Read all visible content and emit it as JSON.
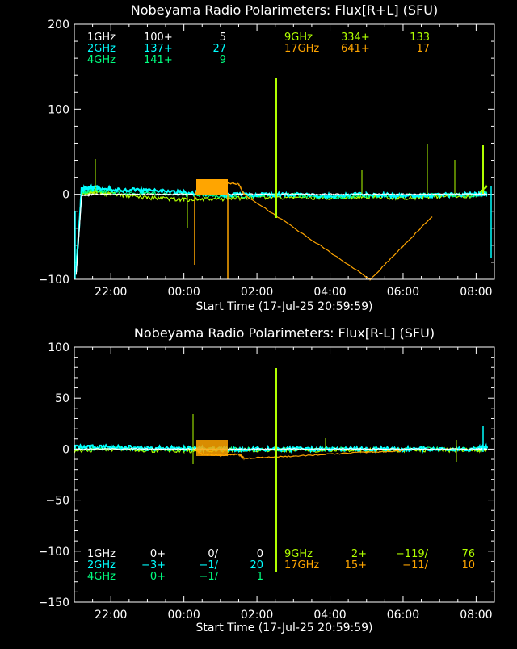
{
  "colors": {
    "1GHz": "#ffffff",
    "2GHz": "#00ffff",
    "4GHz": "#00ff80",
    "9GHz": "#b0ff00",
    "17GHz": "#ffa500"
  },
  "chart_data": [
    {
      "type": "line",
      "title": "Nobeyama Radio Polarimeters: Flux[R+L] (SFU)",
      "xlabel": "Start Time (17-Jul-25 20:59:59)",
      "ylabel": "",
      "x_ticks": [
        "22:00",
        "00:00",
        "02:00",
        "04:00",
        "06:00",
        "08:00"
      ],
      "x_tick_hours": [
        1.0,
        3.0,
        5.0,
        7.0,
        9.0,
        11.0
      ],
      "xlim_hours_from_start": [
        0,
        11.5
      ],
      "ylim": [
        -100,
        200
      ],
      "y_ticks": [
        -100,
        0,
        100,
        200
      ],
      "legend": [
        {
          "name": "1GHz",
          "a": "100+",
          "b": "5"
        },
        {
          "name": "2GHz",
          "a": "137+",
          "b": "27"
        },
        {
          "name": "4GHz",
          "a": "141+",
          "b": "9"
        },
        {
          "name": "9GHz",
          "a": "334+",
          "b": "133"
        },
        {
          "name": "17GHz",
          "a": "641+",
          "b": "17"
        }
      ],
      "series": [
        {
          "name": "9GHz",
          "x": [
            0.05,
            0.2,
            0.5,
            1.0,
            2.0,
            3.0,
            4.0,
            5.0,
            6.0,
            7.0,
            8.0,
            9.0,
            10.0,
            11.0,
            11.3
          ],
          "y": [
            -80,
            0,
            3,
            0,
            -4,
            -6,
            -6,
            -3,
            -4,
            -4,
            -3,
            -4,
            -3,
            -2,
            8
          ]
        },
        {
          "name": "4GHz",
          "x": [
            0.05,
            0.2,
            0.5,
            1.0,
            2.0,
            3.0,
            4.0,
            5.0,
            6.0,
            7.0,
            8.0,
            9.0,
            10.0,
            11.0,
            11.3
          ],
          "y": [
            -80,
            2,
            5,
            3,
            1,
            0,
            -2,
            -2,
            -1,
            -3,
            -2,
            -1,
            -1,
            -1,
            2
          ]
        },
        {
          "name": "2GHz",
          "x": [
            0.05,
            0.2,
            0.5,
            1.0,
            2.0,
            3.0,
            4.0,
            5.0,
            6.0,
            7.0,
            8.0,
            9.0,
            10.0,
            11.0,
            11.3
          ],
          "y": [
            -90,
            6,
            8,
            6,
            4,
            2,
            0,
            -1,
            0,
            -2,
            0,
            -2,
            -1,
            0,
            -1
          ]
        },
        {
          "name": "1GHz",
          "x": [
            0.05,
            0.2,
            0.5,
            1.0,
            2.0,
            3.0,
            4.0,
            5.0,
            6.0,
            7.0,
            8.0,
            9.0,
            10.0,
            11.0,
            11.3
          ],
          "y": [
            -95,
            -2,
            0,
            0,
            0,
            0,
            0,
            0,
            0,
            0,
            0,
            0,
            0,
            0,
            0
          ]
        },
        {
          "name": "17GHz",
          "x": [
            3.3,
            3.5,
            4.0,
            4.5,
            4.65,
            8.1,
            9.8
          ],
          "y": [
            0,
            12,
            14,
            12,
            0,
            -100,
            -26
          ]
        }
      ]
    },
    {
      "type": "line",
      "title": "Nobeyama Radio Polarimeters: Flux[R-L] (SFU)",
      "xlabel": "Start Time (17-Jul-25 20:59:59)",
      "ylabel": "",
      "x_ticks": [
        "22:00",
        "00:00",
        "02:00",
        "04:00",
        "06:00",
        "08:00"
      ],
      "x_tick_hours": [
        1.0,
        3.0,
        5.0,
        7.0,
        9.0,
        11.0
      ],
      "xlim_hours_from_start": [
        0,
        11.5
      ],
      "ylim": [
        -150,
        100
      ],
      "y_ticks": [
        -150,
        -100,
        -50,
        0,
        50,
        100
      ],
      "legend": [
        {
          "name": "1GHz",
          "a": "0+",
          "b": "0/",
          "c": "0"
        },
        {
          "name": "2GHz",
          "a": "-3+",
          "b": "-1/",
          "c": "20"
        },
        {
          "name": "4GHz",
          "a": "0+",
          "b": "-1/",
          "c": "1"
        },
        {
          "name": "9GHz",
          "a": "2+",
          "b": "-119/",
          "c": "76"
        },
        {
          "name": "17GHz",
          "a": "15+",
          "b": "-11/",
          "c": "10"
        }
      ],
      "series": [
        {
          "name": "9GHz",
          "x": [
            0.0,
            1.0,
            2.0,
            3.0,
            4.0,
            5.0,
            6.0,
            7.0,
            8.0,
            9.0,
            10.0,
            11.0,
            11.3
          ],
          "y": [
            -2,
            0,
            -1,
            -2,
            -1,
            -1,
            -1,
            -1,
            -1,
            -1,
            -1,
            -1,
            0
          ]
        },
        {
          "name": "4GHz",
          "x": [
            0.0,
            1.0,
            2.0,
            3.0,
            4.0,
            5.0,
            6.0,
            7.0,
            8.0,
            9.0,
            10.0,
            11.0,
            11.3
          ],
          "y": [
            0,
            1,
            0,
            0,
            0,
            0,
            0,
            0,
            0,
            0,
            0,
            0,
            1
          ]
        },
        {
          "name": "2GHz",
          "x": [
            0.0,
            1.0,
            2.0,
            3.0,
            4.0,
            5.0,
            6.0,
            7.0,
            8.0,
            9.0,
            10.0,
            11.0,
            11.3
          ],
          "y": [
            2,
            2,
            1,
            1,
            0,
            0,
            0,
            0,
            0,
            0,
            0,
            0,
            2
          ]
        },
        {
          "name": "1GHz",
          "x": [
            0.0,
            1.0,
            2.0,
            3.0,
            4.0,
            5.0,
            6.0,
            7.0,
            8.0,
            9.0,
            10.0,
            11.0,
            11.3
          ],
          "y": [
            0,
            0,
            0,
            0,
            0,
            0,
            0,
            0,
            0,
            0,
            0,
            0,
            0
          ]
        },
        {
          "name": "17GHz",
          "x": [
            3.3,
            3.5,
            4.0,
            4.5,
            4.65,
            6.0,
            8.0,
            9.0
          ],
          "y": [
            0,
            -5,
            -6,
            -5,
            -9,
            -7,
            -3,
            -2
          ]
        }
      ]
    }
  ]
}
